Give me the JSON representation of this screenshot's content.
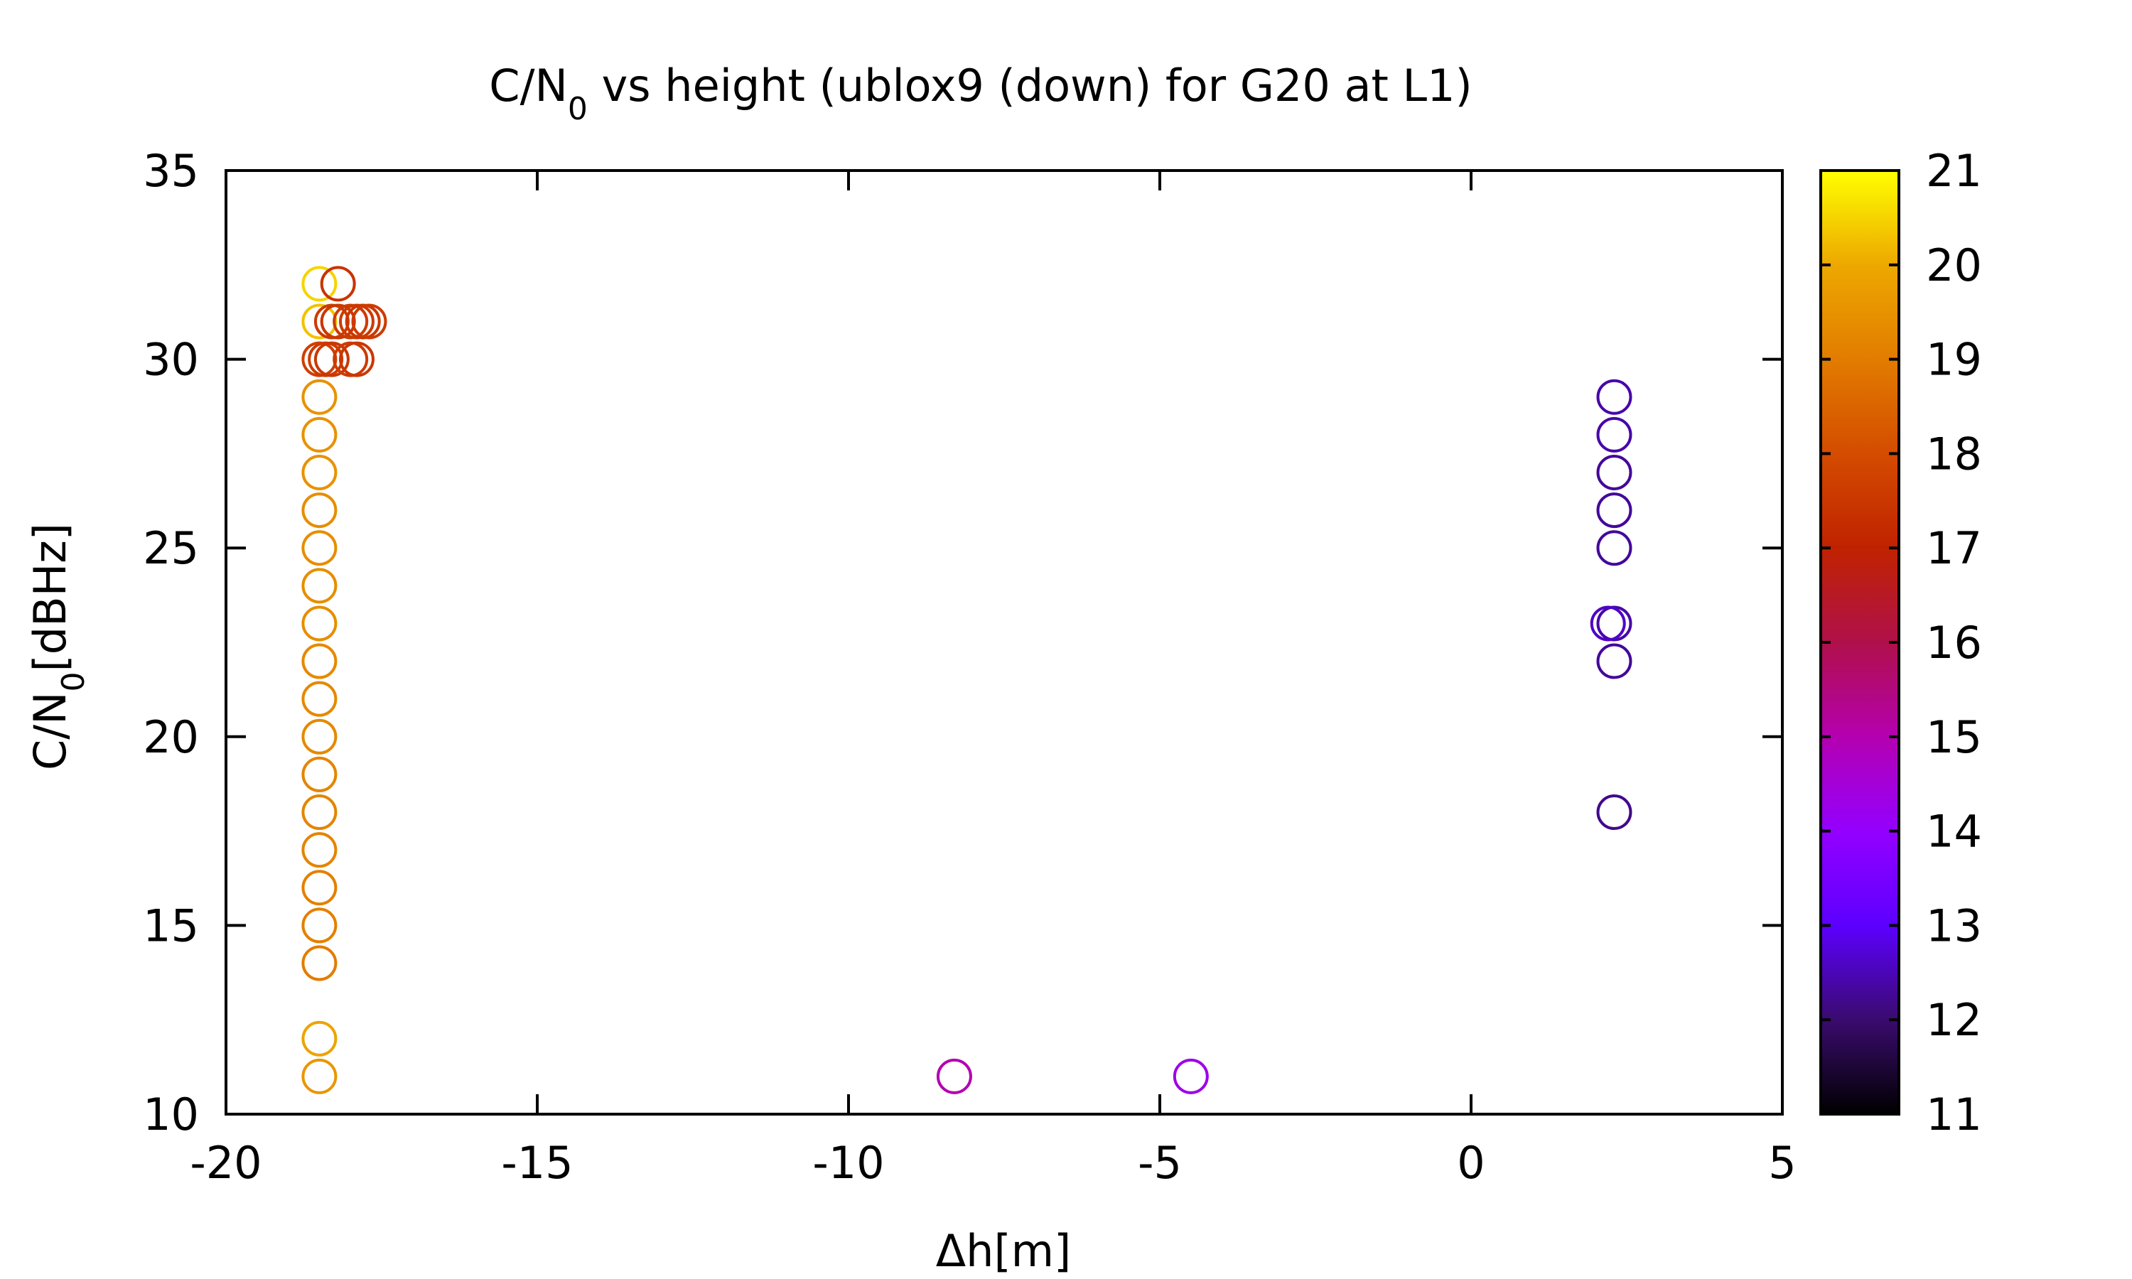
{
  "chart_data": {
    "type": "scatter",
    "title": {
      "prefix": "C/N",
      "subscript": "0",
      "suffix": " vs height (ublox9 (down) for G20 at L1)"
    },
    "xlabel": "Δh[m]",
    "ylabel": {
      "prefix": "C/N",
      "subscript": "0",
      "suffix": "[dBHz]"
    },
    "xlim": [
      -20,
      5
    ],
    "ylim": [
      10,
      35
    ],
    "xticks": [
      "-20",
      "-15",
      "-10",
      "-5",
      "0",
      "5"
    ],
    "yticks": [
      "10",
      "15",
      "20",
      "25",
      "30",
      "35"
    ],
    "colorbar": {
      "range": [
        11,
        21
      ],
      "ticks": [
        "11",
        "12",
        "13",
        "14",
        "15",
        "16",
        "17",
        "18",
        "19",
        "20",
        "21"
      ],
      "stops": [
        {
          "value": 11,
          "color": "#000000"
        },
        {
          "value": 12,
          "color": "#3a0b6e"
        },
        {
          "value": 13,
          "color": "#5c00ff"
        },
        {
          "value": 14,
          "color": "#9400ff"
        },
        {
          "value": 15,
          "color": "#b400b0"
        },
        {
          "value": 16,
          "color": "#b0104a"
        },
        {
          "value": 17,
          "color": "#c02200"
        },
        {
          "value": 18,
          "color": "#d44c00"
        },
        {
          "value": 19,
          "color": "#e27c00"
        },
        {
          "value": 20,
          "color": "#eda800"
        },
        {
          "value": 21,
          "color": "#ffff00"
        }
      ]
    },
    "grid": false,
    "legend": "none",
    "points": [
      {
        "x": -18.5,
        "y": 11,
        "c": 19.6
      },
      {
        "x": -18.5,
        "y": 12,
        "c": 19.9
      },
      {
        "x": -18.5,
        "y": 14,
        "c": 19.0
      },
      {
        "x": -18.5,
        "y": 15,
        "c": 19.1
      },
      {
        "x": -18.5,
        "y": 16,
        "c": 19.1
      },
      {
        "x": -18.5,
        "y": 17,
        "c": 19.2
      },
      {
        "x": -18.5,
        "y": 18,
        "c": 19.2
      },
      {
        "x": -18.5,
        "y": 19,
        "c": 19.2
      },
      {
        "x": -18.5,
        "y": 20,
        "c": 19.3
      },
      {
        "x": -18.5,
        "y": 21,
        "c": 19.3
      },
      {
        "x": -18.5,
        "y": 22,
        "c": 19.3
      },
      {
        "x": -18.5,
        "y": 23,
        "c": 19.4
      },
      {
        "x": -18.5,
        "y": 24,
        "c": 19.4
      },
      {
        "x": -18.5,
        "y": 25,
        "c": 19.4
      },
      {
        "x": -18.5,
        "y": 26,
        "c": 19.4
      },
      {
        "x": -18.5,
        "y": 27,
        "c": 19.5
      },
      {
        "x": -18.5,
        "y": 28,
        "c": 19.5
      },
      {
        "x": -18.5,
        "y": 29,
        "c": 19.5
      },
      {
        "x": -18.5,
        "y": 30,
        "c": 17.7
      },
      {
        "x": -18.4,
        "y": 30,
        "c": 17.6
      },
      {
        "x": -18.3,
        "y": 30,
        "c": 17.5
      },
      {
        "x": -18.0,
        "y": 30,
        "c": 17.6
      },
      {
        "x": -17.9,
        "y": 30,
        "c": 17.5
      },
      {
        "x": -18.5,
        "y": 31,
        "c": 20.3
      },
      {
        "x": -18.3,
        "y": 31,
        "c": 17.6
      },
      {
        "x": -18.2,
        "y": 31,
        "c": 17.5
      },
      {
        "x": -18.0,
        "y": 31,
        "c": 17.6
      },
      {
        "x": -17.9,
        "y": 31,
        "c": 17.6
      },
      {
        "x": -17.8,
        "y": 31,
        "c": 17.5
      },
      {
        "x": -17.7,
        "y": 31,
        "c": 17.6
      },
      {
        "x": -18.5,
        "y": 32,
        "c": 20.5
      },
      {
        "x": -18.2,
        "y": 32,
        "c": 17.4
      },
      {
        "x": -8.3,
        "y": 11,
        "c": 15.0
      },
      {
        "x": -4.5,
        "y": 11,
        "c": 14.3
      },
      {
        "x": 2.3,
        "y": 18,
        "c": 12.2
      },
      {
        "x": 2.3,
        "y": 22,
        "c": 12.3
      },
      {
        "x": 2.3,
        "y": 23,
        "c": 12.4
      },
      {
        "x": 2.2,
        "y": 23,
        "c": 12.6
      },
      {
        "x": 2.3,
        "y": 25,
        "c": 12.3
      },
      {
        "x": 2.3,
        "y": 26,
        "c": 12.3
      },
      {
        "x": 2.3,
        "y": 27,
        "c": 12.3
      },
      {
        "x": 2.3,
        "y": 28,
        "c": 12.4
      },
      {
        "x": 2.3,
        "y": 29,
        "c": 12.4
      }
    ]
  }
}
